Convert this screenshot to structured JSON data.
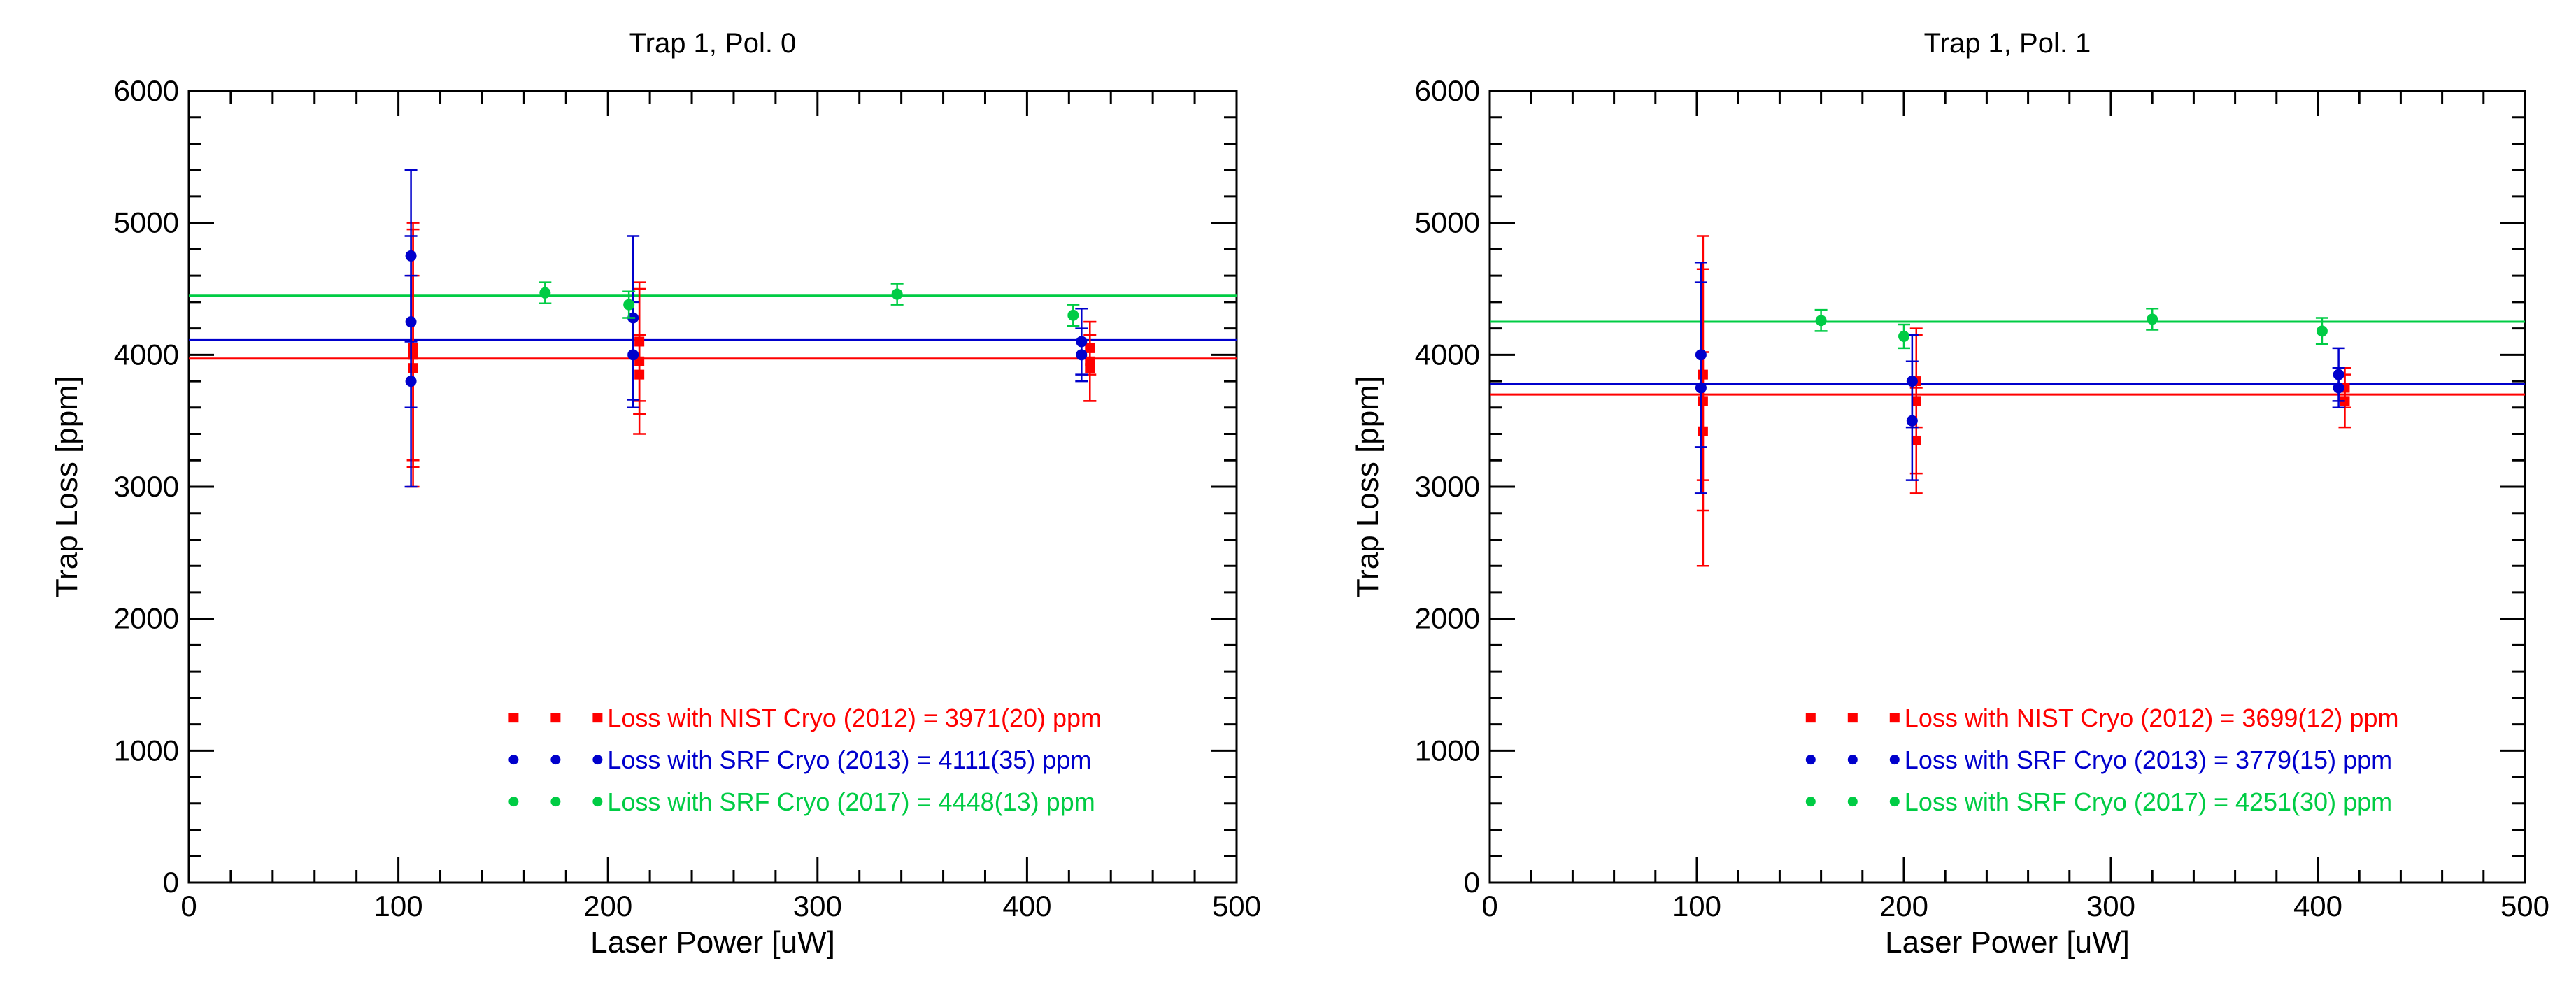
{
  "chart_data": [
    {
      "type": "scatter",
      "title": "Trap 1, Pol. 0",
      "xlabel": "Laser Power [uW]",
      "ylabel": "Trap Loss [ppm]",
      "xlim": [
        0,
        500
      ],
      "ylim": [
        0,
        6000
      ],
      "xticks": [
        "0",
        "100",
        "200",
        "300",
        "400",
        "500"
      ],
      "yticks": [
        "0",
        "1000",
        "2000",
        "3000",
        "4000",
        "5000",
        "6000"
      ],
      "legend_position": "bottom-center",
      "series": [
        {
          "name": "Loss with NIST Cryo (2012) = 3971(20) ppm",
          "color": "#ff0000",
          "marker": "square",
          "fit": 3971,
          "points": [
            {
              "x": 107,
              "y": 4050,
              "err": 900
            },
            {
              "x": 107,
              "y": 3900,
              "err": 700
            },
            {
              "x": 107,
              "y": 4000,
              "err": 1000
            },
            {
              "x": 215,
              "y": 3950,
              "err": 550
            },
            {
              "x": 215,
              "y": 3850,
              "err": 300
            },
            {
              "x": 215,
              "y": 4100,
              "err": 450
            },
            {
              "x": 430,
              "y": 3950,
              "err": 300
            },
            {
              "x": 430,
              "y": 4050,
              "err": 200
            },
            {
              "x": 430,
              "y": 3900,
              "err": 250
            }
          ]
        },
        {
          "name": "Loss with SRF Cryo (2013) = 4111(35) ppm",
          "color": "#0000cc",
          "marker": "circle",
          "fit": 4111,
          "points": [
            {
              "x": 106,
              "y": 4750,
              "err": 650
            },
            {
              "x": 106,
              "y": 4250,
              "err": 650
            },
            {
              "x": 106,
              "y": 3800,
              "err": 800
            },
            {
              "x": 212,
              "y": 4280,
              "err": 620
            },
            {
              "x": 212,
              "y": 4000,
              "err": 400
            },
            {
              "x": 426,
              "y": 4100,
              "err": 250
            },
            {
              "x": 426,
              "y": 4000,
              "err": 200
            }
          ]
        },
        {
          "name": "Loss with SRF Cryo (2017) = 4448(13) ppm",
          "color": "#00cc44",
          "marker": "circle",
          "fit": 4448,
          "points": [
            {
              "x": 170,
              "y": 4470,
              "err": 80
            },
            {
              "x": 210,
              "y": 4380,
              "err": 100
            },
            {
              "x": 338,
              "y": 4460,
              "err": 80
            },
            {
              "x": 422,
              "y": 4300,
              "err": 80
            }
          ]
        }
      ]
    },
    {
      "type": "scatter",
      "title": "Trap 1, Pol. 1",
      "xlabel": "Laser Power [uW]",
      "ylabel": "Trap Loss [ppm]",
      "xlim": [
        0,
        500
      ],
      "ylim": [
        0,
        6000
      ],
      "xticks": [
        "0",
        "100",
        "200",
        "300",
        "400",
        "500"
      ],
      "yticks": [
        "0",
        "1000",
        "2000",
        "3000",
        "4000",
        "5000",
        "6000"
      ],
      "legend_position": "bottom-center",
      "series": [
        {
          "name": "Loss with NIST Cryo (2012) = 3699(12) ppm",
          "color": "#ff0000",
          "marker": "square",
          "fit": 3699,
          "points": [
            {
              "x": 103,
              "y": 3650,
              "err": 1250
            },
            {
              "x": 103,
              "y": 3420,
              "err": 600
            },
            {
              "x": 103,
              "y": 3850,
              "err": 800
            },
            {
              "x": 206,
              "y": 3350,
              "err": 400
            },
            {
              "x": 206,
              "y": 3650,
              "err": 550
            },
            {
              "x": 206,
              "y": 3800,
              "err": 350
            },
            {
              "x": 413,
              "y": 3650,
              "err": 200
            },
            {
              "x": 413,
              "y": 3750,
              "err": 150
            }
          ]
        },
        {
          "name": "Loss with SRF Cryo (2013) = 3779(15) ppm",
          "color": "#0000cc",
          "marker": "circle",
          "fit": 3779,
          "points": [
            {
              "x": 102,
              "y": 4000,
              "err": 700
            },
            {
              "x": 102,
              "y": 3750,
              "err": 800
            },
            {
              "x": 204,
              "y": 3800,
              "err": 350
            },
            {
              "x": 204,
              "y": 3500,
              "err": 450
            },
            {
              "x": 410,
              "y": 3850,
              "err": 200
            },
            {
              "x": 410,
              "y": 3750,
              "err": 150
            }
          ]
        },
        {
          "name": "Loss with SRF Cryo (2017) = 4251(30) ppm",
          "color": "#00cc44",
          "marker": "circle",
          "fit": 4251,
          "points": [
            {
              "x": 160,
              "y": 4260,
              "err": 80
            },
            {
              "x": 200,
              "y": 4140,
              "err": 90
            },
            {
              "x": 320,
              "y": 4270,
              "err": 80
            },
            {
              "x": 402,
              "y": 4180,
              "err": 100
            }
          ]
        }
      ]
    }
  ]
}
